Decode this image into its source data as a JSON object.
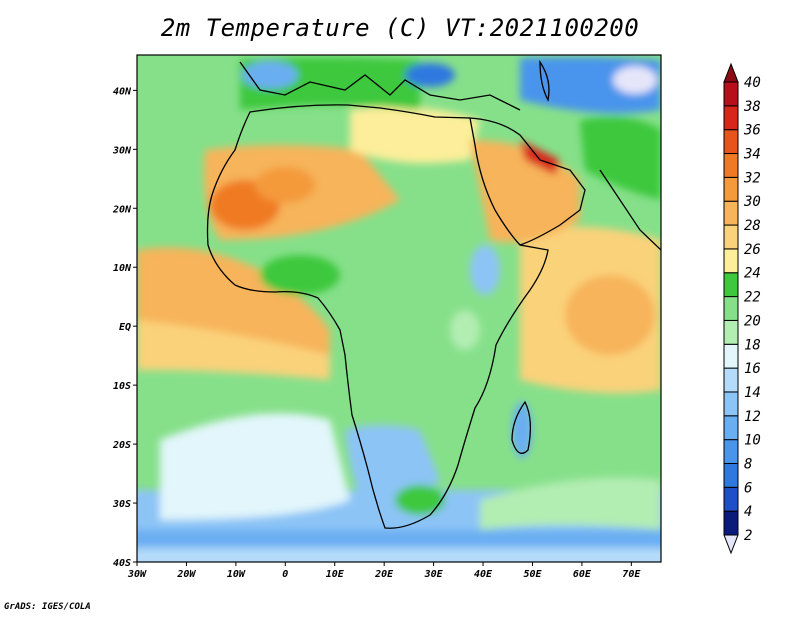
{
  "title": "2m Temperature (C) VT:2021100200",
  "credit": "GrADS: IGES/COLA",
  "map": {
    "lon_range": [
      -30,
      76
    ],
    "lat_range": [
      -40,
      46
    ],
    "x_ticks": [
      "30W",
      "20W",
      "10W",
      "0",
      "10E",
      "20E",
      "30E",
      "40E",
      "50E",
      "60E",
      "70E"
    ],
    "y_ticks": [
      "40N",
      "30N",
      "20N",
      "10N",
      "EQ",
      "10S",
      "20S",
      "30S",
      "40S"
    ]
  },
  "colorbar": {
    "levels": [
      "2",
      "4",
      "6",
      "8",
      "10",
      "12",
      "14",
      "16",
      "18",
      "20",
      "22",
      "24",
      "26",
      "28",
      "30",
      "32",
      "34",
      "36",
      "38",
      "40"
    ],
    "colors": [
      "#e6e6fa",
      "#0a1b7c",
      "#1e4fc8",
      "#2f78e0",
      "#4a94ec",
      "#6aaef2",
      "#8cc4f6",
      "#b4dcfa",
      "#e2f6fb",
      "#b2edb2",
      "#86e08a",
      "#3ec83e",
      "#fcee9a",
      "#fad27a",
      "#f7b45a",
      "#f49a3a",
      "#f07a24",
      "#e8541a",
      "#d8261a",
      "#b8101a",
      "#8c0a14"
    ]
  }
}
